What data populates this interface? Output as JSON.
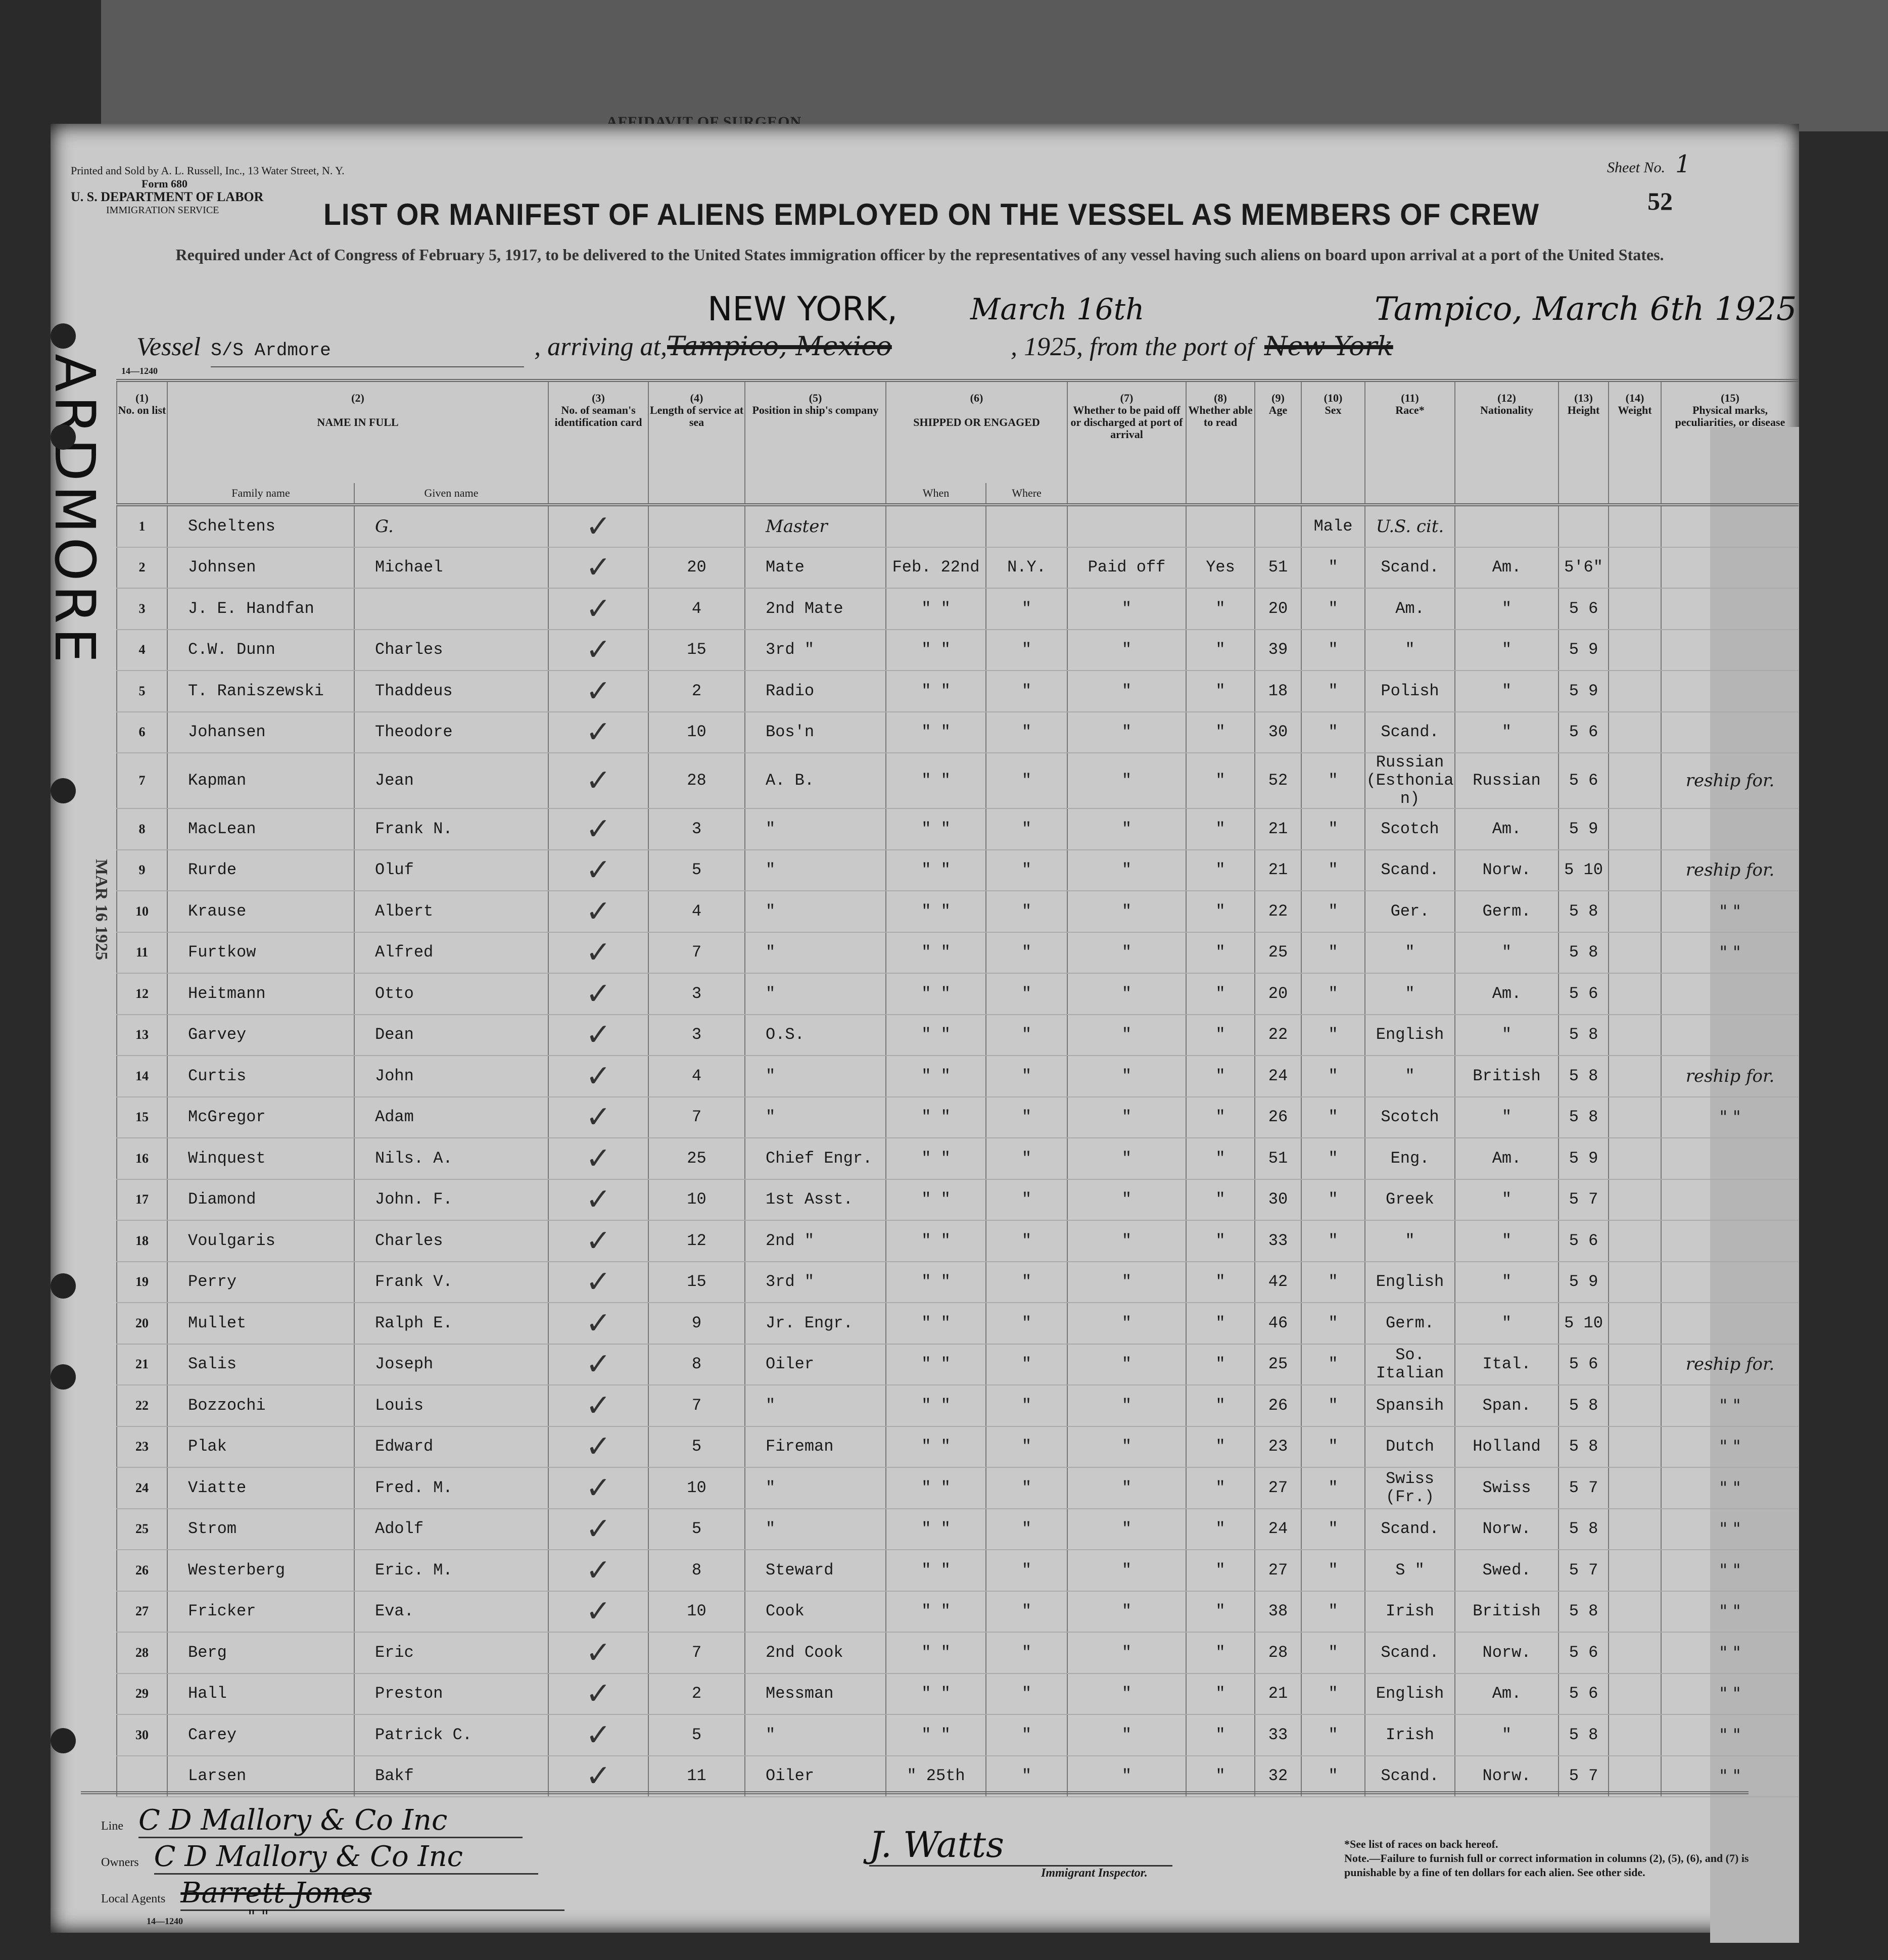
{
  "back_sheet_title": "AFFIDAVIT OF SURGEON",
  "header": {
    "printer": "Printed and Sold by A. L. Russell, Inc., 13 Water Street, N. Y.",
    "form": "Form 680",
    "department": "U. S. DEPARTMENT OF LABOR",
    "service": "IMMIGRATION SERVICE",
    "sheet_label": "Sheet No.",
    "sheet_no": "1",
    "form_number": "52",
    "title": "LIST OR MANIFEST OF ALIENS EMPLOYED ON THE VESSEL AS MEMBERS OF CREW",
    "required": "Required under Act of Congress of February 5, 1917, to be delivered to the United States immigration officer by the representatives of any vessel having such aliens on board upon arrival at a port of the United States.",
    "handwritten_departure": "Tampico, March 6th 1925",
    "handwritten_arrival": "NEW YORK,",
    "handwritten_arrival_date": "March 16th",
    "vessel_label": "Vessel",
    "vessel": "S/S Ardmore",
    "arriving_label": ", arriving at,",
    "arriving_struck": "Tampico, Mexico",
    "year": ", 1925,",
    "from_label": "from the port of",
    "from_port_struck": "New York",
    "code": "14—1240"
  },
  "columns": {
    "nums": [
      "(1)",
      "(2)",
      "(3)",
      "(4)",
      "(5)",
      "(6)",
      "(7)",
      "(8)",
      "(9)",
      "(10)",
      "(11)",
      "(12)",
      "(13)",
      "(14)",
      "(15)"
    ],
    "no": "No. on list",
    "name": "NAME IN FULL",
    "family": "Family name",
    "given": "Given name",
    "id_card": "No. of seaman's identification card",
    "length": "Length of service at sea",
    "position": "Position in ship's company",
    "shipped": "SHIPPED OR ENGAGED",
    "when": "When",
    "where": "Where",
    "paid_off": "Whether to be paid off or discharged at port of arrival",
    "read": "Whether able to read",
    "age": "Age",
    "sex": "Sex",
    "race": "Race*",
    "nationality": "Nationality",
    "height": "Height",
    "weight": "Weight",
    "marks": "Physical marks, peculiarities, or disease"
  },
  "rows": [
    {
      "no": "1",
      "family": "Scheltens",
      "given": "G.",
      "card": "✓",
      "length": "",
      "position": "Master",
      "when": "",
      "where": "",
      "paid": "",
      "read": "",
      "age": "",
      "sex": "Male",
      "race": "U.S. cit.",
      "nat": "",
      "height": "",
      "weight": "",
      "marks": ""
    },
    {
      "no": "2",
      "family": "Johnsen",
      "given": "Michael",
      "card": "✓",
      "length": "20",
      "position": "Mate",
      "when": "Feb. 22nd",
      "where": "N.Y.",
      "paid": "Paid off",
      "read": "Yes",
      "age": "51",
      "sex": "\"",
      "race": "Scand.",
      "nat": "Am.",
      "height": "5'6\"",
      "weight": "",
      "marks": ""
    },
    {
      "no": "3",
      "family": "J. E. Handfan",
      "given": "",
      "card": "✓",
      "length": "4",
      "position": "2nd Mate",
      "when": "\"  \"",
      "where": "\"",
      "paid": "\"",
      "read": "\"",
      "age": "20",
      "sex": "\"",
      "race": "Am.",
      "nat": "\"",
      "height": "5 6",
      "weight": "",
      "marks": ""
    },
    {
      "no": "4",
      "family": "C.W. Dunn",
      "given": "Charles",
      "card": "✓",
      "length": "15",
      "position": "3rd  \"",
      "when": "\"  \"",
      "where": "\"",
      "paid": "\"",
      "read": "\"",
      "age": "39",
      "sex": "\"",
      "race": "\"",
      "nat": "\"",
      "height": "5 9",
      "weight": "",
      "marks": ""
    },
    {
      "no": "5",
      "family": "T. Raniszewski",
      "given": "Thaddeus",
      "card": "✓",
      "length": "2",
      "position": "Radio",
      "when": "\"  \"",
      "where": "\"",
      "paid": "\"",
      "read": "\"",
      "age": "18",
      "sex": "\"",
      "race": "Polish",
      "nat": "\"",
      "height": "5 9",
      "weight": "",
      "marks": ""
    },
    {
      "no": "6",
      "family": "Johansen",
      "given": "Theodore",
      "card": "✓",
      "length": "10",
      "position": "Bos'n",
      "when": "\"  \"",
      "where": "\"",
      "paid": "\"",
      "read": "\"",
      "age": "30",
      "sex": "\"",
      "race": "Scand.",
      "nat": "\"",
      "height": "5 6",
      "weight": "",
      "marks": ""
    },
    {
      "no": "7",
      "family": "Kapman",
      "given": "Jean",
      "card": "✓",
      "length": "28",
      "position": "A. B.",
      "when": "\"  \"",
      "where": "\"",
      "paid": "\"",
      "read": "\"",
      "age": "52",
      "sex": "\"",
      "race": "Russian (Esthonian)",
      "nat": "Russian",
      "height": "5 6",
      "weight": "",
      "marks": "reship for."
    },
    {
      "no": "8",
      "family": "MacLean",
      "given": "Frank N.",
      "card": "✓",
      "length": "3",
      "position": "\"",
      "when": "\"  \"",
      "where": "\"",
      "paid": "\"",
      "read": "\"",
      "age": "21",
      "sex": "\"",
      "race": "Scotch",
      "nat": "Am.",
      "height": "5 9",
      "weight": "",
      "marks": ""
    },
    {
      "no": "9",
      "family": "Rurde",
      "given": "Oluf",
      "card": "✓",
      "length": "5",
      "position": "\"",
      "when": "\"  \"",
      "where": "\"",
      "paid": "\"",
      "read": "\"",
      "age": "21",
      "sex": "\"",
      "race": "Scand.",
      "nat": "Norw.",
      "height": "5 10",
      "weight": "",
      "marks": "reship for."
    },
    {
      "no": "10",
      "family": "Krause",
      "given": "Albert",
      "card": "✓",
      "length": "4",
      "position": "\"",
      "when": "\"  \"",
      "where": "\"",
      "paid": "\"",
      "read": "\"",
      "age": "22",
      "sex": "\"",
      "race": "Ger.",
      "nat": "Germ.",
      "height": "5 8",
      "weight": "",
      "marks": "\"   \""
    },
    {
      "no": "11",
      "family": "Furtkow",
      "given": "Alfred",
      "card": "✓",
      "length": "7",
      "position": "\"",
      "when": "\"  \"",
      "where": "\"",
      "paid": "\"",
      "read": "\"",
      "age": "25",
      "sex": "\"",
      "race": "\"",
      "nat": "\"",
      "height": "5 8",
      "weight": "",
      "marks": "\"   \""
    },
    {
      "no": "12",
      "family": "Heitmann",
      "given": "Otto",
      "card": "✓",
      "length": "3",
      "position": "\"",
      "when": "\"  \"",
      "where": "\"",
      "paid": "\"",
      "read": "\"",
      "age": "20",
      "sex": "\"",
      "race": "\"",
      "nat": "Am.",
      "height": "5 6",
      "weight": "",
      "marks": ""
    },
    {
      "no": "13",
      "family": "Garvey",
      "given": "Dean",
      "card": "✓",
      "length": "3",
      "position": "O.S.",
      "when": "\"  \"",
      "where": "\"",
      "paid": "\"",
      "read": "\"",
      "age": "22",
      "sex": "\"",
      "race": "English",
      "nat": "\"",
      "height": "5 8",
      "weight": "",
      "marks": ""
    },
    {
      "no": "14",
      "family": "Curtis",
      "given": "John",
      "card": "✓",
      "length": "4",
      "position": "\"",
      "when": "\"  \"",
      "where": "\"",
      "paid": "\"",
      "read": "\"",
      "age": "24",
      "sex": "\"",
      "race": "\"",
      "nat": "British",
      "height": "5 8",
      "weight": "",
      "marks": "reship for."
    },
    {
      "no": "15",
      "family": "McGregor",
      "given": "Adam",
      "card": "✓",
      "length": "7",
      "position": "\"",
      "when": "\"  \"",
      "where": "\"",
      "paid": "\"",
      "read": "\"",
      "age": "26",
      "sex": "\"",
      "race": "Scotch",
      "nat": "\"",
      "height": "5 8",
      "weight": "",
      "marks": "\"   \""
    },
    {
      "no": "16",
      "family": "Winquest",
      "given": "Nils. A.",
      "card": "✓",
      "length": "25",
      "position": "Chief Engr.",
      "when": "\"  \"",
      "where": "\"",
      "paid": "\"",
      "read": "\"",
      "age": "51",
      "sex": "\"",
      "race": "Eng.",
      "nat": "Am.",
      "height": "5 9",
      "weight": "",
      "marks": ""
    },
    {
      "no": "17",
      "family": "Diamond",
      "given": "John. F.",
      "card": "✓",
      "length": "10",
      "position": "1st Asst.",
      "when": "\"  \"",
      "where": "\"",
      "paid": "\"",
      "read": "\"",
      "age": "30",
      "sex": "\"",
      "race": "Greek",
      "nat": "\"",
      "height": "5 7",
      "weight": "",
      "marks": ""
    },
    {
      "no": "18",
      "family": "Voulgaris",
      "given": "Charles",
      "card": "✓",
      "length": "12",
      "position": "2nd  \"",
      "when": "\"  \"",
      "where": "\"",
      "paid": "\"",
      "read": "\"",
      "age": "33",
      "sex": "\"",
      "race": "\"",
      "nat": "\"",
      "height": "5 6",
      "weight": "",
      "marks": ""
    },
    {
      "no": "19",
      "family": "Perry",
      "given": "Frank V.",
      "card": "✓",
      "length": "15",
      "position": "3rd  \"",
      "when": "\"  \"",
      "where": "\"",
      "paid": "\"",
      "read": "\"",
      "age": "42",
      "sex": "\"",
      "race": "English",
      "nat": "\"",
      "height": "5 9",
      "weight": "",
      "marks": ""
    },
    {
      "no": "20",
      "family": "Mullet",
      "given": "Ralph E.",
      "card": "✓",
      "length": "9",
      "position": "Jr. Engr.",
      "when": "\"  \"",
      "where": "\"",
      "paid": "\"",
      "read": "\"",
      "age": "46",
      "sex": "\"",
      "race": "Germ.",
      "nat": "\"",
      "height": "5 10",
      "weight": "",
      "marks": ""
    },
    {
      "no": "21",
      "family": "Salis",
      "given": "Joseph",
      "card": "✓",
      "length": "8",
      "position": "Oiler",
      "when": "\"  \"",
      "where": "\"",
      "paid": "\"",
      "read": "\"",
      "age": "25",
      "sex": "\"",
      "race": "So. Italian",
      "nat": "Ital.",
      "height": "5 6",
      "weight": "",
      "marks": "reship for."
    },
    {
      "no": "22",
      "family": "Bozzochi",
      "given": "Louis",
      "card": "✓",
      "length": "7",
      "position": "\"",
      "when": "\"  \"",
      "where": "\"",
      "paid": "\"",
      "read": "\"",
      "age": "26",
      "sex": "\"",
      "race": "Spansih",
      "nat": "Span.",
      "height": "5 8",
      "weight": "",
      "marks": "\"   \""
    },
    {
      "no": "23",
      "family": "Plak",
      "given": "Edward",
      "card": "✓",
      "length": "5",
      "position": "Fireman",
      "when": "\"  \"",
      "where": "\"",
      "paid": "\"",
      "read": "\"",
      "age": "23",
      "sex": "\"",
      "race": "Dutch",
      "nat": "Holland",
      "height": "5 8",
      "weight": "",
      "marks": "\"   \""
    },
    {
      "no": "24",
      "family": "Viatte",
      "given": "Fred. M.",
      "card": "✓",
      "length": "10",
      "position": "\"",
      "when": "\"  \"",
      "where": "\"",
      "paid": "\"",
      "read": "\"",
      "age": "27",
      "sex": "\"",
      "race": "Swiss (Fr.)",
      "nat": "Swiss",
      "height": "5 7",
      "weight": "",
      "marks": "\"   \""
    },
    {
      "no": "25",
      "family": "Strom",
      "given": "Adolf",
      "card": "✓",
      "length": "5",
      "position": "\"",
      "when": "\"  \"",
      "where": "\"",
      "paid": "\"",
      "read": "\"",
      "age": "24",
      "sex": "\"",
      "race": "Scand.",
      "nat": "Norw.",
      "height": "5 8",
      "weight": "",
      "marks": "\"   \""
    },
    {
      "no": "26",
      "family": "Westerberg",
      "given": "Eric. M.",
      "card": "✓",
      "length": "8",
      "position": "Steward",
      "when": "\"  \"",
      "where": "\"",
      "paid": "\"",
      "read": "\"",
      "age": "27",
      "sex": "\"",
      "race": "S  \"",
      "nat": "Swed.",
      "height": "5 7",
      "weight": "",
      "marks": "\"   \""
    },
    {
      "no": "27",
      "family": "Fricker",
      "given": "Eva.",
      "card": "✓",
      "length": "10",
      "position": "Cook",
      "when": "\"  \"",
      "where": "\"",
      "paid": "\"",
      "read": "\"",
      "age": "38",
      "sex": "\"",
      "race": "Irish",
      "nat": "British",
      "height": "5 8",
      "weight": "",
      "marks": "\"   \""
    },
    {
      "no": "28",
      "family": "Berg",
      "given": "Eric",
      "card": "✓",
      "length": "7",
      "position": "2nd Cook",
      "when": "\"  \"",
      "where": "\"",
      "paid": "\"",
      "read": "\"",
      "age": "28",
      "sex": "\"",
      "race": "Scand.",
      "nat": "Norw.",
      "height": "5 6",
      "weight": "",
      "marks": "\"   \""
    },
    {
      "no": "29",
      "family": "Hall",
      "given": "Preston",
      "card": "✓",
      "length": "2",
      "position": "Messman",
      "when": "\"  \"",
      "where": "\"",
      "paid": "\"",
      "read": "\"",
      "age": "21",
      "sex": "\"",
      "race": "English",
      "nat": "Am.",
      "height": "5 6",
      "weight": "",
      "marks": "\"   \""
    },
    {
      "no": "30",
      "family": "Carey",
      "given": "Patrick C.",
      "card": "✓",
      "length": "5",
      "position": "\"",
      "when": "\"  \"",
      "where": "\"",
      "paid": "\"",
      "read": "\"",
      "age": "33",
      "sex": "\"",
      "race": "Irish",
      "nat": "\"",
      "height": "5 8",
      "weight": "",
      "marks": "\"   \""
    },
    {
      "no": "",
      "family": "Larsen",
      "given": "Bakf",
      "card": "✓",
      "length": "11",
      "position": "Oiler",
      "when": "\"  25th",
      "where": "\"",
      "paid": "\"",
      "read": "\"",
      "age": "32",
      "sex": "\"",
      "race": "Scand.",
      "nat": "Norw.",
      "height": "5 7",
      "weight": "",
      "marks": "\"   \""
    }
  ],
  "footer": {
    "line_label": "Line",
    "line": "C D Mallory & Co Inc",
    "owners_label": "Owners",
    "owners": "C D Mallory & Co Inc",
    "agents_label": "Local Agents",
    "agents": "Barrett Jones",
    "agents_ditto": "\"        \"",
    "code": "14—1240",
    "inspector_signature": "J. Watts",
    "inspector_label": "Immigrant Inspector.",
    "note1": "*See list of races on back hereof.",
    "note2": "Note.—Failure to furnish full or correct information in columns (2), (5), (6), and (7) is punishable by a fine of ten dollars for each alien. See other side."
  },
  "stamp": {
    "vessel": "ARDMORE",
    "date": "MAR 16 1925"
  }
}
